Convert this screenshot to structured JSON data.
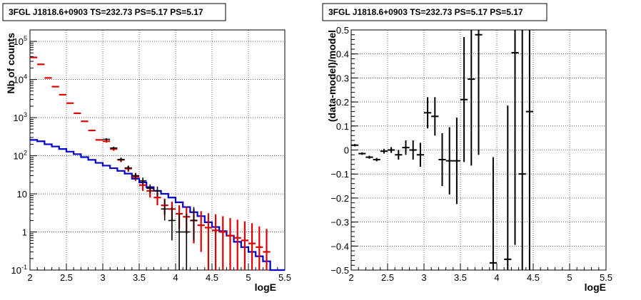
{
  "chart_data": [
    {
      "type": "line",
      "title": "3FGL J1818.6+0903 TS=232.73 PS=5.17 PS=5.17",
      "xlabel": "logE",
      "ylabel": "Nb of counts",
      "xlim": [
        2,
        5.5
      ],
      "ylim": [
        0.1,
        200000
      ],
      "yscale": "log",
      "grid": true,
      "x_ticks": [
        "2",
        "2.5",
        "3",
        "3.5",
        "4",
        "4.5",
        "5",
        "5.5"
      ],
      "y_ticks": [
        {
          "base": "10",
          "exp": "-1",
          "value": 0.1
        },
        {
          "base": "1",
          "exp": "",
          "value": 1
        },
        {
          "base": "10",
          "exp": "",
          "value": 10
        },
        {
          "base": "10",
          "exp": "2",
          "value": 100
        },
        {
          "base": "10",
          "exp": "3",
          "value": 1000
        },
        {
          "base": "10",
          "exp": "4",
          "value": 10000
        },
        {
          "base": "10",
          "exp": "5",
          "value": 100000
        }
      ],
      "bin_edges": [
        2.0,
        2.1,
        2.2,
        2.3,
        2.4,
        2.5,
        2.6,
        2.7,
        2.8,
        2.9,
        3.0,
        3.1,
        3.2,
        3.3,
        3.4,
        3.5,
        3.6,
        3.7,
        3.8,
        3.9,
        4.0,
        4.1,
        4.2,
        4.3,
        4.4,
        4.5,
        4.6,
        4.7,
        4.8,
        4.9,
        5.0,
        5.1,
        5.2,
        5.3,
        5.4,
        5.5
      ],
      "series": [
        {
          "role": "model_red",
          "color": "#dd0000",
          "x": [
            2.05,
            2.15,
            2.25,
            2.35,
            2.45,
            2.55,
            2.65,
            2.75,
            2.85,
            2.95,
            3.05,
            3.15,
            3.25,
            3.35,
            3.45,
            3.55,
            3.65,
            3.75,
            3.85,
            3.95,
            4.05,
            4.15,
            4.25,
            4.35,
            4.45,
            4.55,
            4.65,
            4.75,
            4.85,
            4.95,
            5.05,
            5.15,
            5.25
          ],
          "y": [
            38000,
            25000,
            11000,
            6500,
            4000,
            2400,
            1300,
            800,
            460,
            260,
            240,
            150,
            78,
            46,
            28,
            17,
            12,
            8,
            5,
            4,
            3,
            2.5,
            2,
            1.5,
            1.3,
            1.1,
            1.0,
            0.8,
            0.7,
            0.6,
            0.5,
            0.4,
            0.3
          ],
          "err_low": [
            0,
            0,
            0,
            0,
            0,
            0,
            0,
            0,
            0,
            0,
            20,
            15,
            10,
            8,
            6,
            5,
            4,
            3,
            2.2,
            2.0,
            1.8,
            1.6,
            1.5,
            1.2,
            1.2,
            1.0,
            1.0,
            0.8,
            0.7,
            0.6,
            0.5,
            0.4,
            0.3
          ],
          "err_high": [
            0,
            0,
            0,
            0,
            0,
            0,
            0,
            0,
            0,
            0,
            20,
            15,
            10,
            8,
            6,
            5,
            4,
            3,
            2.5,
            2.2,
            2.0,
            2.0,
            2.0,
            2.0,
            1.8,
            1.8,
            1.6,
            1.5,
            1.4,
            1.3,
            1.2,
            1.0,
            0.9
          ]
        },
        {
          "role": "model_blue",
          "color": "#0000cc",
          "y_steps": [
            260,
            240,
            200,
            175,
            150,
            128,
            110,
            92,
            78,
            65,
            55,
            47,
            40,
            34,
            25,
            20,
            15,
            12,
            10,
            8,
            6,
            4.5,
            3.3,
            2.6,
            1.8,
            1.35,
            1.05,
            0.8,
            0.55,
            0.4,
            0.3,
            0.23,
            0.17,
            0.1,
            0.1
          ]
        },
        {
          "role": "data_black",
          "color": "#000000",
          "x": [
            3.05,
            3.15,
            3.25,
            3.35,
            3.45,
            3.55,
            3.65,
            3.75,
            3.85,
            3.95,
            4.05,
            4.15,
            4.25
          ],
          "y": [
            270,
            160,
            80,
            48,
            30,
            22,
            14,
            12,
            4,
            2,
            1,
            1,
            2
          ],
          "err_low": [
            16,
            13,
            9,
            7,
            5.5,
            4.7,
            3.7,
            3.5,
            2,
            1.4,
            0.9,
            0.9,
            1.4
          ],
          "err_high": [
            16,
            13,
            9,
            7,
            5.5,
            4.7,
            3.7,
            3.5,
            3,
            2.5,
            2,
            2,
            2.5
          ]
        }
      ]
    },
    {
      "type": "scatter",
      "title": "3FGL J1818.6+0903 TS=232.73 PS=5.17 PS=5.17",
      "xlabel": "logE",
      "ylabel": "(data-model)/model",
      "xlim": [
        2,
        5.5
      ],
      "ylim": [
        -0.5,
        0.5
      ],
      "grid": true,
      "x_ticks": [
        "2",
        "2.5",
        "3",
        "3.5",
        "4",
        "4.5",
        "5",
        "5.5"
      ],
      "y_ticks": [
        "−0.5",
        "−0.4",
        "−0.3",
        "−0.2",
        "−0.1",
        "0",
        "0.1",
        "0.2",
        "0.3",
        "0.4",
        "0.5"
      ],
      "y_tick_values": [
        -0.5,
        -0.4,
        -0.3,
        -0.2,
        -0.1,
        0,
        0.1,
        0.2,
        0.3,
        0.4,
        0.5
      ],
      "series": [
        {
          "color": "#000000",
          "x": [
            2.05,
            2.15,
            2.25,
            2.35,
            2.45,
            2.55,
            2.65,
            2.75,
            2.85,
            2.95,
            3.05,
            3.15,
            3.25,
            3.35,
            3.45,
            3.55,
            3.65,
            3.75,
            3.95,
            4.15,
            4.25,
            4.35,
            4.45
          ],
          "y": [
            0.02,
            -0.015,
            -0.03,
            -0.04,
            -0.005,
            0.0,
            -0.02,
            0.01,
            0.0,
            -0.02,
            0.155,
            0.14,
            -0.04,
            -0.045,
            -0.045,
            0.21,
            0.295,
            0.48,
            -0.47,
            -0.455,
            0.405,
            -0.1,
            0.16
          ],
          "err": [
            0.005,
            0.005,
            0.006,
            0.007,
            0.01,
            0.012,
            0.02,
            0.03,
            0.04,
            0.05,
            0.065,
            0.08,
            0.11,
            0.14,
            0.18,
            0.26,
            0.36,
            0.5,
            0.44,
            0.64,
            0.8,
            0.9,
            0.9
          ]
        }
      ]
    }
  ]
}
